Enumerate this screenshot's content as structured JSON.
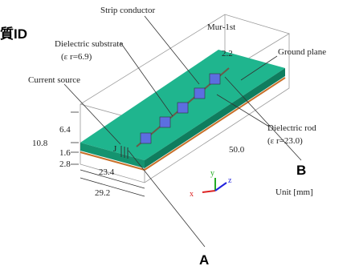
{
  "header": {
    "title": "質ID"
  },
  "labels": {
    "strip_conductor": "Strip conductor",
    "mur": "Mur-1st",
    "substrate": "Dielectric substrate",
    "substrate_eps": "(ε r=6.9)",
    "gap": "2.2",
    "ground": "Ground plane",
    "source": "Current source",
    "source_symbol": "J",
    "rod": "Dielectric rod",
    "rod_eps": "(ε r=23.0)",
    "unit": "Unit [mm]"
  },
  "dimensions": {
    "air_height": "6.4",
    "total_height": "10.8",
    "substrate_height": "1.6",
    "bottom_height": "2.8",
    "width_inner": "23.4",
    "width_outer": "29.2",
    "length": "50.0"
  },
  "axes": {
    "x": "x",
    "y": "y",
    "z": "z"
  },
  "points": {
    "a": "A",
    "b": "B"
  }
}
